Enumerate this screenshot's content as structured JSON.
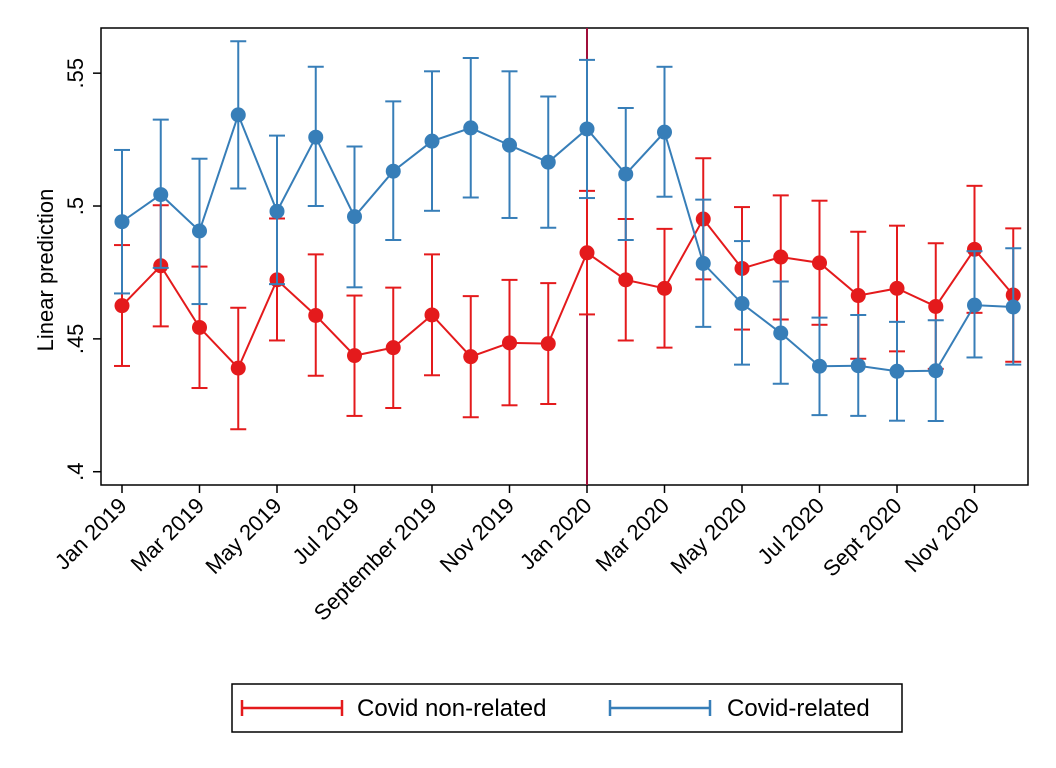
{
  "chart_data": {
    "type": "line",
    "title": "",
    "xlabel": "",
    "ylabel": "Linear prediction",
    "ylim": [
      0.395,
      0.567
    ],
    "yticks": [
      0.4,
      0.45,
      0.5,
      0.55
    ],
    "ytick_labels": [
      ".4",
      ".45",
      ".5",
      ".55"
    ],
    "x": [
      "Jan 2019",
      "Feb 2019",
      "Mar 2019",
      "Apr 2019",
      "May 2019",
      "Jun 2019",
      "Jul 2019",
      "Aug 2019",
      "Sep 2019",
      "Oct 2019",
      "Nov 2019",
      "Dec 2019",
      "Jan 2020",
      "Feb 2020",
      "Mar 2020",
      "Apr 2020",
      "May 2020",
      "Jun 2020",
      "Jul 2020",
      "Aug 2020",
      "Sep 2020",
      "Oct 2020",
      "Nov 2020",
      "Dec 2020"
    ],
    "xtick_labels": [
      {
        "index": 0,
        "label": "Jan 2019"
      },
      {
        "index": 2,
        "label": "Mar 2019"
      },
      {
        "index": 4,
        "label": "May 2019"
      },
      {
        "index": 6,
        "label": "Jul 2019"
      },
      {
        "index": 8,
        "label": "September 2019"
      },
      {
        "index": 10,
        "label": "Nov 2019"
      },
      {
        "index": 12,
        "label": "Jan 2020"
      },
      {
        "index": 14,
        "label": "Mar 2020"
      },
      {
        "index": 16,
        "label": "May 2020"
      },
      {
        "index": 18,
        "label": "Jul 2020"
      },
      {
        "index": 20,
        "label": "Sept 2020"
      },
      {
        "index": 22,
        "label": "Nov 2020"
      }
    ],
    "vline": {
      "index": 12,
      "color": "#a00f3a"
    },
    "grid": false,
    "legend_position": "bottom",
    "series": [
      {
        "name": "Covid non-related",
        "color": "#e41a1c",
        "values": [
          0.4625,
          0.4775,
          0.4543,
          0.439,
          0.4722,
          0.4588,
          0.4437,
          0.4467,
          0.459,
          0.4433,
          0.4485,
          0.4482,
          0.4824,
          0.4722,
          0.469,
          0.4951,
          0.4765,
          0.4808,
          0.4786,
          0.4663,
          0.469,
          0.4622,
          0.4837,
          0.4665
        ],
        "lower": [
          0.4398,
          0.4547,
          0.4315,
          0.416,
          0.4494,
          0.4361,
          0.421,
          0.424,
          0.4363,
          0.4205,
          0.425,
          0.4255,
          0.4592,
          0.4494,
          0.4467,
          0.4724,
          0.4535,
          0.4573,
          0.4553,
          0.4425,
          0.4453,
          0.4387,
          0.4598,
          0.4414
        ],
        "upper": [
          0.4853,
          0.5003,
          0.4772,
          0.4617,
          0.4953,
          0.4818,
          0.4663,
          0.4693,
          0.4818,
          0.4661,
          0.4722,
          0.471,
          0.5057,
          0.4951,
          0.4914,
          0.518,
          0.4996,
          0.504,
          0.502,
          0.4903,
          0.4926,
          0.486,
          0.5076,
          0.4916
        ]
      },
      {
        "name": "Covid-related",
        "color": "#377eb8",
        "values": [
          0.4941,
          0.5043,
          0.4906,
          0.5343,
          0.498,
          0.5259,
          0.496,
          0.5131,
          0.5244,
          0.5294,
          0.5229,
          0.5165,
          0.529,
          0.512,
          0.5278,
          0.4784,
          0.4633,
          0.4522,
          0.4397,
          0.4399,
          0.4378,
          0.438,
          0.4627,
          0.462
        ],
        "lower": [
          0.4671,
          0.4767,
          0.4631,
          0.5066,
          0.4706,
          0.5,
          0.4694,
          0.4872,
          0.4982,
          0.5032,
          0.4955,
          0.4918,
          0.503,
          0.4872,
          0.5035,
          0.4545,
          0.4403,
          0.4331,
          0.4213,
          0.421,
          0.4192,
          0.4191,
          0.443,
          0.4403
        ],
        "upper": [
          0.5211,
          0.5325,
          0.5178,
          0.562,
          0.5265,
          0.5524,
          0.5224,
          0.5394,
          0.5507,
          0.5557,
          0.5507,
          0.5412,
          0.555,
          0.5369,
          0.5524,
          0.5024,
          0.4868,
          0.4716,
          0.458,
          0.459,
          0.4564,
          0.457,
          0.483,
          0.4841
        ]
      }
    ]
  }
}
